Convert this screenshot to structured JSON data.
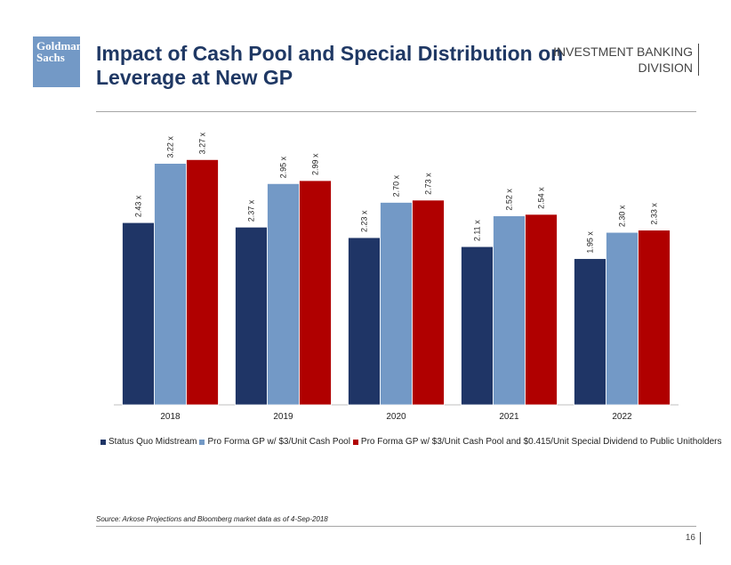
{
  "header": {
    "logo_line1": "Goldman",
    "logo_line2": "Sachs",
    "title": "Impact of Cash Pool and Special Distribution on Leverage at New GP",
    "division_line1": "INVESTMENT BANKING",
    "division_line2": "DIVISION"
  },
  "colors": {
    "series1": "#1f3566",
    "series2": "#7399c6",
    "series3": "#b00000",
    "title": "#1f3864"
  },
  "chart_data": {
    "type": "bar",
    "title": "",
    "xlabel": "",
    "ylabel": "",
    "ylim": [
      0,
      3.5
    ],
    "categories": [
      "2018",
      "2019",
      "2020",
      "2021",
      "2022"
    ],
    "series": [
      {
        "name": "Status Quo Midstream",
        "values": [
          2.43,
          2.37,
          2.23,
          2.11,
          1.95
        ],
        "labels": [
          "2.43 x",
          "2.37 x",
          "2.23 x",
          "2.11 x",
          "1.95 x"
        ]
      },
      {
        "name": "Pro Forma GP w/ $3/Unit Cash Pool",
        "values": [
          3.22,
          2.95,
          2.7,
          2.52,
          2.3
        ],
        "labels": [
          "3.22 x",
          "2.95 x",
          "2.70 x",
          "2.52 x",
          "2.30 x"
        ]
      },
      {
        "name": "Pro Forma GP w/ $3/Unit Cash Pool and $0.415/Unit Special Dividend to Public Unitholders",
        "values": [
          3.27,
          2.99,
          2.73,
          2.54,
          2.33
        ],
        "labels": [
          "3.27 x",
          "2.99 x",
          "2.73 x",
          "2.54 x",
          "2.33 x"
        ]
      }
    ],
    "legend_position": "bottom"
  },
  "footer": {
    "source": "Source: Arkose Projections and Bloomberg market data as of 4-Sep-2018",
    "page_number": "16"
  }
}
